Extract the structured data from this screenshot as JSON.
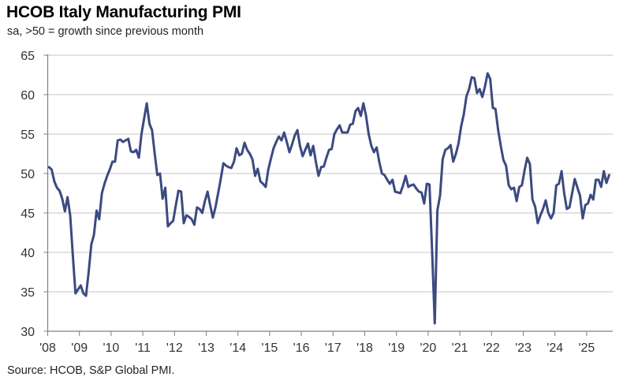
{
  "chart_data": {
    "type": "line",
    "title": "HCOB Italy Manufacturing PMI",
    "subtitle": "sa, >50 = growth since previous month",
    "source": "Source: HCOB, S&P Global PMI.",
    "xlabel": "",
    "ylabel": "",
    "ylim": [
      30,
      65
    ],
    "yticks": [
      30,
      35,
      40,
      45,
      50,
      55,
      60,
      65
    ],
    "xtick_labels": [
      "'08",
      "'09",
      "'10",
      "'11",
      "'12",
      "'13",
      "'14",
      "'15",
      "'16",
      "'17",
      "'18",
      "'19",
      "'20",
      "'21",
      "'22",
      "'23",
      "'24",
      "'25"
    ],
    "grid": "horizontal",
    "frequency": "monthly",
    "line_color": "#3b4a80",
    "values_by_year": {
      "2008": [
        50.8,
        50.5,
        49.0,
        48.2,
        47.8,
        46.8,
        45.2,
        47.0,
        44.7,
        39.7,
        34.8,
        35.3
      ],
      "2009": [
        35.8,
        34.8,
        34.5,
        37.5,
        41.0,
        42.2,
        45.3,
        44.2,
        47.5,
        48.7,
        49.7,
        50.5
      ],
      "2010": [
        51.5,
        51.5,
        54.2,
        54.3,
        54.0,
        54.2,
        54.4,
        52.8,
        52.7,
        53.0,
        52.0,
        55.0
      ],
      "2011": [
        57.0,
        58.9,
        56.3,
        55.5,
        52.5,
        49.8,
        50.0,
        46.8,
        48.2,
        43.3,
        43.7,
        44.0
      ],
      "2012": [
        46.0,
        47.8,
        47.7,
        43.7,
        44.7,
        44.5,
        44.2,
        43.5,
        45.7,
        45.5,
        45.0,
        46.5
      ],
      "2013": [
        47.7,
        46.0,
        44.4,
        45.7,
        47.5,
        49.3,
        51.3,
        51.0,
        50.8,
        50.7,
        51.5,
        53.2
      ],
      "2014": [
        52.3,
        52.5,
        53.9,
        53.0,
        52.5,
        51.8,
        49.7,
        50.6,
        49.0,
        48.7,
        48.3,
        50.5
      ],
      "2015": [
        51.9,
        53.2,
        54.0,
        54.7,
        54.2,
        55.2,
        54.0,
        52.7,
        53.7,
        54.8,
        55.5,
        53.5
      ],
      "2016": [
        52.2,
        53.0,
        53.8,
        52.3,
        53.5,
        51.5,
        49.7,
        50.8,
        50.9,
        52.0,
        53.0,
        53.1
      ],
      "2017": [
        55.0,
        55.6,
        56.1,
        55.2,
        55.2,
        55.2,
        56.2,
        56.3,
        57.9,
        58.3,
        57.3,
        58.9
      ],
      "2018": [
        57.3,
        55.0,
        53.5,
        52.7,
        53.3,
        51.5,
        50.0,
        49.8,
        49.2,
        48.7,
        49.2,
        47.7
      ],
      "2019": [
        47.6,
        47.5,
        48.5,
        49.7,
        48.3,
        48.5,
        48.6,
        48.1,
        47.7,
        47.6,
        46.2,
        48.7
      ],
      "2020": [
        48.6,
        40.3,
        31.0,
        45.3,
        47.2,
        51.8,
        53.0,
        53.2,
        53.6,
        51.5,
        52.5,
        53.8
      ],
      "2021": [
        56.0,
        57.5,
        59.8,
        60.7,
        62.2,
        62.1,
        60.2,
        60.7,
        59.7,
        61.0,
        62.7,
        62.0
      ],
      "2022": [
        58.3,
        58.2,
        55.5,
        53.5,
        51.7,
        51.0,
        48.5,
        48.0,
        48.2,
        46.5,
        48.3,
        48.5
      ],
      "2023": [
        50.4,
        52.0,
        51.2,
        46.7,
        45.8,
        43.7,
        44.7,
        45.5,
        46.6,
        45.0,
        44.3,
        45.0
      ],
      "2024": [
        48.5,
        48.7,
        50.3,
        47.5,
        45.5,
        45.7,
        47.5,
        49.3,
        48.2,
        47.2,
        44.3,
        46.0
      ],
      "2025": [
        46.2,
        47.3,
        46.7,
        49.2,
        49.2,
        48.3,
        50.3,
        48.8,
        49.8
      ]
    }
  }
}
